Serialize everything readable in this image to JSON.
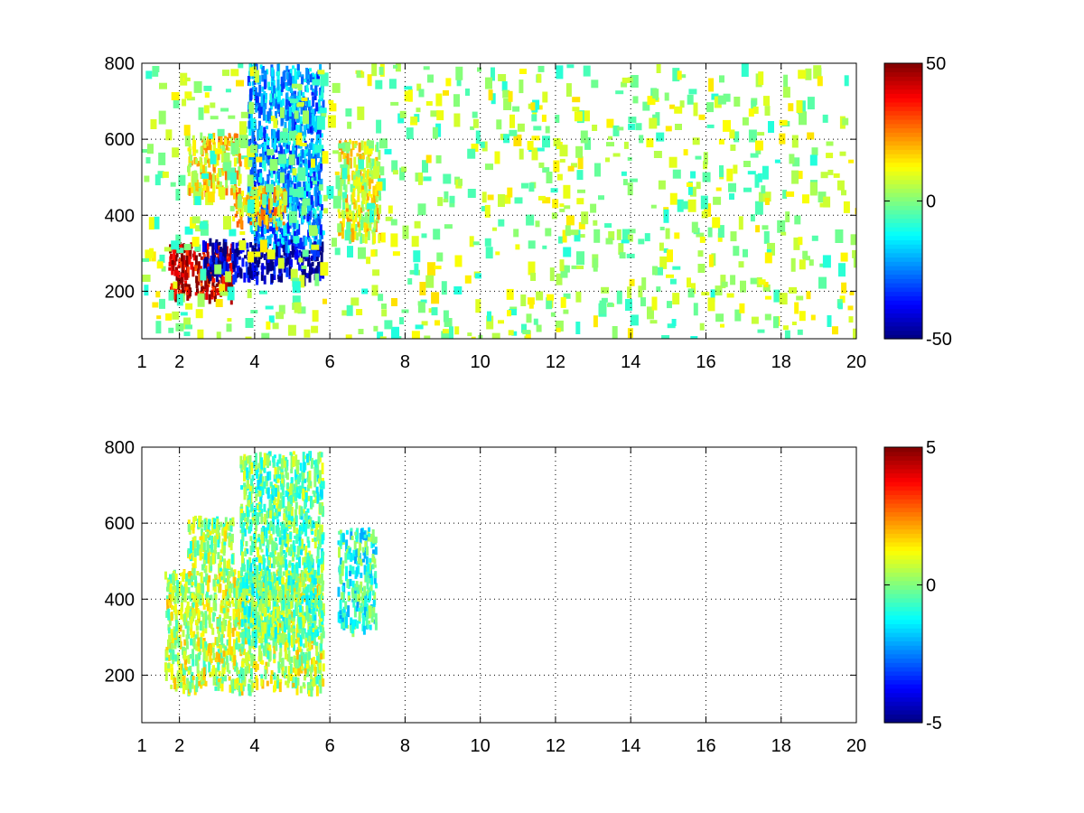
{
  "chart_data": [
    {
      "type": "heatmap",
      "title": "",
      "xlabel": "",
      "ylabel": "",
      "xlim": [
        1,
        20
      ],
      "ylim": [
        75,
        800
      ],
      "x_ticks": [
        1,
        2,
        4,
        6,
        8,
        10,
        12,
        14,
        16,
        18,
        20
      ],
      "y_ticks": [
        200,
        400,
        600,
        800
      ],
      "grid": true,
      "colormap": "jet",
      "colorbar": {
        "min": -50,
        "max": 50,
        "ticks": [
          50,
          0,
          -50
        ],
        "placement": "right"
      },
      "features": [
        {
          "x_range": [
            1.7,
            3.4
          ],
          "y_range": [
            190,
            330
          ],
          "value": 42
        },
        {
          "x_range": [
            2.6,
            5.8
          ],
          "y_range": [
            240,
            340
          ],
          "value": -45
        },
        {
          "x_range": [
            3.8,
            5.8
          ],
          "y_range": [
            330,
            800
          ],
          "value": -22
        },
        {
          "x_range": [
            2.2,
            3.6
          ],
          "y_range": [
            470,
            620
          ],
          "value": 14
        },
        {
          "x_range": [
            3.4,
            4.8
          ],
          "y_range": [
            380,
            480
          ],
          "value": 16
        },
        {
          "x_range": [
            6.2,
            7.3
          ],
          "y_range": [
            350,
            600
          ],
          "value": 10
        },
        {
          "x_range": [
            1,
            20
          ],
          "y_range": [
            75,
            800
          ],
          "value": 3,
          "sparse": true
        }
      ]
    },
    {
      "type": "heatmap",
      "title": "",
      "xlabel": "",
      "ylabel": "",
      "xlim": [
        1,
        20
      ],
      "ylim": [
        75,
        800
      ],
      "x_ticks": [
        1,
        2,
        4,
        6,
        8,
        10,
        12,
        14,
        16,
        18,
        20
      ],
      "y_ticks": [
        200,
        400,
        600,
        800
      ],
      "grid": true,
      "colormap": "jet",
      "colorbar": {
        "min": -5,
        "max": 5,
        "ticks": [
          5,
          0,
          -5
        ],
        "placement": "right"
      },
      "features": [
        {
          "x_range": [
            1.6,
            5.8
          ],
          "y_range": [
            170,
            480
          ],
          "value": 0.6
        },
        {
          "x_range": [
            3.6,
            5.8
          ],
          "y_range": [
            300,
            790
          ],
          "value": -0.2
        },
        {
          "x_range": [
            2.2,
            3.4
          ],
          "y_range": [
            480,
            620
          ],
          "value": 0.3
        },
        {
          "x_range": [
            6.2,
            7.2
          ],
          "y_range": [
            330,
            590
          ],
          "value": -0.8
        }
      ]
    }
  ]
}
